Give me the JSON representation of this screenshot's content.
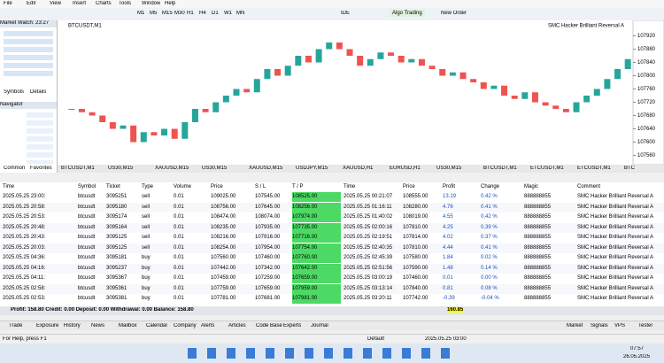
{
  "menu": [
    "File",
    "Edit",
    "View",
    "Insert",
    "Charts",
    "Tools",
    "Window",
    "Help"
  ],
  "toolbar": {
    "timeframes": [
      "M1",
      "M5",
      "M15",
      "M30",
      "H1",
      "H4",
      "D1",
      "W1",
      "MN"
    ],
    "ide": "IDE",
    "algo": "Algo Trading",
    "order": "New Order"
  },
  "market_watch": {
    "title": "Market Watch: 23:27",
    "tabs": [
      "Symbols",
      "Details"
    ]
  },
  "navigator": {
    "title": "Navigator",
    "tabs": [
      "Common",
      "Favorites"
    ]
  },
  "chart": {
    "info": "SMC Hacker Brilliant Reversal A",
    "symbol": "BTCUSDT,M1",
    "ylim": [
      107540,
      107940
    ],
    "yticks": [
      107560,
      107600,
      107640,
      107680,
      107720,
      107760,
      107800,
      107840,
      107880,
      107920
    ],
    "closes": [
      107700,
      107690,
      107680,
      107660,
      107640,
      107650,
      107600,
      107630,
      107620,
      107640,
      107610,
      107660,
      107700,
      107690,
      107720,
      107740,
      107760,
      107750,
      107790,
      107820,
      107800,
      107830,
      107860,
      107840,
      107880,
      107900,
      107880,
      107860,
      107830,
      107850,
      107870,
      107860,
      107840,
      107850,
      107830,
      107820,
      107800,
      107810,
      107790,
      107780,
      107760,
      107770,
      107740,
      107730,
      107750,
      107720,
      107710,
      107700,
      107690,
      107720,
      107740,
      107760,
      107790,
      107820,
      107850
    ]
  },
  "chart_tabs": [
    "BTCUSDT,M1",
    "US30,M15",
    "XAUUSD,M15",
    "US30,M15",
    "XAUUSD,M15",
    "USDJPY,M15",
    "XAUUSD,H1",
    "EURUSD,H1",
    "US30,M15",
    "BTCUSDT,M1",
    "ETCUSDT,M1",
    "ETCUSDT,M1",
    "BTC"
  ],
  "table": {
    "columns": [
      "Time",
      "Symbol",
      "Ticket",
      "Type",
      "Volume",
      "Price",
      "S / L",
      "T / P",
      "Time",
      "Price",
      "Profit",
      "Change",
      "Magic",
      "Comment"
    ],
    "rows": [
      [
        "2025.05.25 23:00:",
        "btcusdt",
        "3095251",
        "sell",
        "0.01",
        "109025.00",
        "107545.00",
        "108525.00",
        "2025.05.25 00:21:07",
        "108555.00",
        "13.19",
        "0.42 %",
        "888888855",
        "SMC Hacker Brilliant Reversal A"
      ],
      [
        "2025.05.25 20:58:",
        "btcusdt",
        "3095180",
        "sell",
        "0.01",
        "108756.00",
        "107645.00",
        "108256.00",
        "2025.05.25 01:16:11",
        "108280.00",
        "4.76",
        "0.41 %",
        "888888855",
        "SMC Hacker Brilliant Reversal A"
      ],
      [
        "2025.05.25 20:53:",
        "btcusdt",
        "3095174",
        "sell",
        "0.01",
        "108474.00",
        "108074.00",
        "107974.00",
        "2025.05.25 01:40:02",
        "108019.00",
        "4.55",
        "0.42 %",
        "888888855",
        "SMC Hacker Brilliant Reversal A"
      ],
      [
        "2025.05.25 20:48:",
        "btcusdt",
        "3095164",
        "sell",
        "0.01",
        "108235.00",
        "107935.00",
        "107735.00",
        "2025.05.25 02:00:16",
        "107810.00",
        "4.25",
        "0.39 %",
        "888888855",
        "SMC Hacker Brilliant Reversal A"
      ],
      [
        "2025.05.25 20:43:",
        "btcusdt",
        "3095125",
        "sell",
        "0.01",
        "108216.00",
        "107916.00",
        "107716.00",
        "2025.05.25 02:19:51",
        "107814.00",
        "4.02",
        "0.37 %",
        "888888855",
        "SMC Hacker Brilliant Reversal A"
      ],
      [
        "2025.05.25 20:03:",
        "btcusdt",
        "3095125",
        "sell",
        "0.01",
        "108254.00",
        "107954.00",
        "107754.00",
        "2025.05.25 02:40:35",
        "107810.00",
        "4.44",
        "0.41 %",
        "888888855",
        "SMC Hacker Brilliant Reversal A"
      ],
      [
        "2025.05.25 04:36:",
        "btcusdt",
        "3095181",
        "buy",
        "0.01",
        "107560.00",
        "107460.00",
        "107760.00",
        "2025.05.25 02:45:39",
        "107580.00",
        "1.84",
        "0.02 %",
        "888888855",
        "SMC Hacker Brilliant Reversal A"
      ],
      [
        "2025.05.25 04:16:",
        "btcusdt",
        "3095237",
        "buy",
        "0.01",
        "107442.00",
        "107342.00",
        "107642.00",
        "2025.05.25 02:51:56",
        "107590.00",
        "1.48",
        "0.14 %",
        "888888855",
        "SMC Hacker Brilliant Reversal A"
      ],
      [
        "2025.05.25 04:11:",
        "btcusdt",
        "3095367",
        "buy",
        "0.01",
        "107459.00",
        "107259.00",
        "107659.00",
        "2025.05.25 03:00:19",
        "107460.00",
        "0.01",
        "0.00 %",
        "888888855",
        "SMC Hacker Brilliant Reversal A"
      ],
      [
        "2025.05.25 02:58:",
        "btcusdt",
        "3095361",
        "buy",
        "0.01",
        "107759.00",
        "107659.00",
        "107959.00",
        "2025.05.25 03:13:14",
        "107840.00",
        "0.81",
        "0.08 %",
        "888888855",
        "SMC Hacker Brilliant Reversal A"
      ],
      [
        "2025.05.25 02:53:",
        "btcusdt",
        "3095381",
        "buy",
        "0.01",
        "107781.00",
        "107681.00",
        "107981.00",
        "2025.05.25 03:20:11",
        "107742.00",
        "-0.39",
        "-0.04 %",
        "888888855",
        "SMC Hacker Brilliant Reversal A"
      ]
    ]
  },
  "summary": {
    "text": "Profit: 158.80  Credit: 0.00  Deposit: 0.00  Withdrawal: 0.00  Balance: 158.80",
    "total": "160.85"
  },
  "bottom_tabs": [
    "Trade",
    "Exposure",
    "History",
    "News",
    "Mailbox",
    "Calendar",
    "Company",
    "Alerts",
    "Articles",
    "Code Base",
    "Experts",
    "Journal"
  ],
  "right_tabs": [
    "Market",
    "Signals",
    "VPS",
    "Tester"
  ],
  "status": {
    "help": "For Help, press F1",
    "profile": "Default",
    "time": "2025.05.25 03:00",
    "clock": "07:57",
    "date": "26.05.2025"
  }
}
